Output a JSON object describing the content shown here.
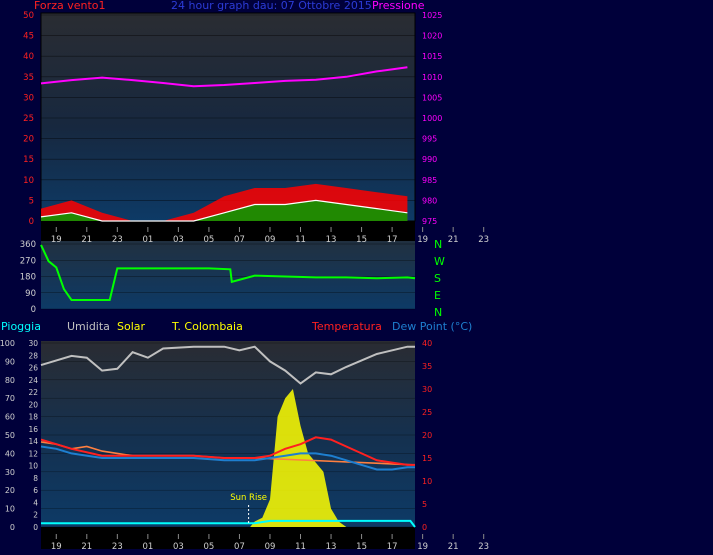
{
  "header": {
    "left_label": "Forza vento1",
    "center_title": "24 hour graph dau: 07 Ottobre 2015",
    "right_label": "Pressione"
  },
  "wind_dir_labels": [
    "N",
    "W",
    "S",
    "E",
    "N"
  ],
  "bottom_legend": {
    "rain": "Pioggia",
    "humidity": "Umidita",
    "solar": "Solar",
    "location": "T. Colombaia",
    "temperature": "Temperatura",
    "dewpoint": "Dew Point (°C)",
    "sunrise": "Sun Rise"
  },
  "colors": {
    "background": "#00003a",
    "wind": "#ff0000",
    "gust": "#ffffff",
    "wind_avg": "#00a000",
    "pressure": "#ff00ff",
    "wind_dir": "#00ff00",
    "humidity": "#c0c0c0",
    "solar": "#ffff00",
    "temperature": "#ff2020",
    "dewpoint": "#1e7fd0",
    "rain": "#00ffff",
    "heat": "#ff8040"
  },
  "chart_data": [
    {
      "type": "line",
      "title": "24 hour graph dau: 07 Ottobre 2015",
      "x_ticks": [
        "19",
        "21",
        "23",
        "01",
        "03",
        "05",
        "07",
        "09",
        "11",
        "13",
        "15",
        "17",
        "19",
        "21",
        "23"
      ],
      "left_axis": {
        "label": "Forza vento1",
        "range": [
          0,
          50
        ],
        "ticks": [
          0,
          5,
          10,
          15,
          20,
          25,
          30,
          35,
          40,
          45,
          50
        ]
      },
      "right_axis": {
        "label": "Pressione",
        "range": [
          975,
          1025
        ],
        "ticks": [
          975,
          980,
          985,
          990,
          995,
          1000,
          1005,
          1010,
          1015,
          1020,
          1025
        ]
      },
      "series": [
        {
          "name": "Pressione",
          "axis": "right",
          "x": [
            18,
            20,
            22,
            24,
            26,
            28,
            30,
            32,
            34,
            36,
            38,
            40,
            42
          ],
          "values": [
            1008.4,
            1009.2,
            1009.8,
            1009.2,
            1008.5,
            1007.7,
            1008.0,
            1008.5,
            1009.0,
            1009.3,
            1010.0,
            1011.3,
            1012.3
          ]
        },
        {
          "name": "Forza vento1",
          "axis": "left",
          "x": [
            18,
            20,
            22,
            24,
            26,
            28,
            30,
            32,
            34,
            36,
            38,
            40,
            42
          ],
          "values": [
            3,
            5,
            2,
            0,
            0,
            2,
            6,
            8,
            8,
            9,
            8,
            7,
            6
          ]
        },
        {
          "axis": "left",
          "x": [
            18,
            20,
            22,
            24,
            26,
            28,
            30,
            32,
            34,
            36,
            38,
            40,
            42
          ],
          "values": [
            1,
            2,
            0,
            0,
            0,
            0,
            2,
            4,
            4,
            5,
            4,
            3,
            2
          ]
        }
      ]
    },
    {
      "type": "line",
      "x_ticks": [
        "19",
        "21",
        "23",
        "01",
        "03",
        "05",
        "07",
        "09",
        "11",
        "13",
        "15",
        "17",
        "19",
        "21",
        "23"
      ],
      "y_axis": {
        "range": [
          0,
          360
        ],
        "ticks": [
          0,
          90,
          180,
          270,
          360
        ]
      },
      "series": [
        {
          "x": [
            18.0,
            18.5,
            19.0,
            19.5,
            20.0,
            20.5,
            22.0,
            22.5,
            23.0,
            25.0,
            27.0,
            29.0,
            30.4,
            30.5,
            32.0,
            34.0,
            36.0,
            38.0,
            40.0,
            42.0,
            42.5
          ],
          "values": [
            355,
            265,
            230,
            110,
            50,
            50,
            50,
            50,
            225,
            225,
            225,
            225,
            220,
            150,
            185,
            180,
            175,
            175,
            170,
            175,
            170
          ]
        }
      ]
    },
    {
      "type": "line",
      "title": "T. Colombaia",
      "x_ticks": [
        "19",
        "21",
        "23",
        "01",
        "03",
        "05",
        "07",
        "09",
        "11",
        "13",
        "15",
        "17",
        "19",
        "21",
        "23"
      ],
      "left_axis_rain": {
        "label": "Pioggia",
        "range": [
          0,
          30
        ],
        "ticks": [
          0,
          2,
          4,
          6,
          8,
          10,
          12,
          14,
          16,
          18,
          20,
          22,
          24,
          26,
          28,
          30
        ]
      },
      "left_axis_humidity": {
        "label": "Umidita",
        "range": [
          0,
          100
        ],
        "ticks": [
          0,
          10,
          20,
          30,
          40,
          50,
          60,
          70,
          80,
          90,
          100
        ]
      },
      "right_axis": {
        "label": "Temperatura / Dew Point (°C)",
        "range": [
          0,
          40
        ],
        "ticks": [
          0,
          5,
          10,
          15,
          20,
          25,
          30,
          35,
          40
        ]
      },
      "annotations": [
        {
          "text": "Sun Rise",
          "x": 31.6
        }
      ],
      "series": [
        {
          "name": "Umidita",
          "axis": "humidity",
          "x": [
            18,
            20,
            21,
            22,
            23,
            24,
            25,
            26,
            28,
            30,
            31,
            32,
            33,
            34,
            35,
            36,
            37,
            38,
            40,
            42,
            42.5
          ],
          "values": [
            88,
            93,
            92,
            85,
            86,
            95,
            92,
            97,
            98,
            98,
            96,
            98,
            90,
            85,
            78,
            84,
            83,
            87,
            94,
            98,
            98
          ]
        },
        {
          "name": "Temperatura",
          "axis": "right",
          "x": [
            18,
            19,
            20,
            22,
            24,
            26,
            28,
            30,
            31,
            32,
            33,
            34,
            35,
            36,
            37,
            38,
            39,
            40,
            41,
            42,
            42.5
          ],
          "values": [
            19,
            18,
            17,
            15.5,
            15.5,
            15.5,
            15.5,
            15,
            15,
            15,
            15.5,
            17,
            18,
            19.5,
            19,
            17.5,
            16,
            14.5,
            14,
            13.5,
            13.5
          ]
        },
        {
          "name": "Dew Point (°C)",
          "axis": "right",
          "x": [
            18,
            19,
            20,
            22,
            24,
            26,
            28,
            30,
            31,
            32,
            33,
            34,
            35,
            36,
            37,
            38,
            39,
            40,
            41,
            42,
            42.5
          ],
          "values": [
            17.5,
            17,
            16,
            15,
            15,
            15,
            15,
            14.5,
            14.5,
            14.5,
            15,
            15.5,
            16,
            16,
            15.5,
            14.5,
            13.5,
            12.5,
            12.5,
            13,
            13
          ]
        },
        {
          "axis": "right",
          "x": [
            18,
            19,
            20,
            21,
            22,
            23,
            24,
            26,
            28,
            30,
            31,
            32,
            42.5
          ],
          "values": [
            18.5,
            18,
            17,
            17.5,
            16.5,
            16,
            15.5,
            15.5,
            15.5,
            15,
            15,
            15,
            13.5
          ]
        },
        {
          "name": "Solar",
          "axis": "humidity",
          "x": [
            18,
            31.7,
            32,
            32.5,
            33,
            33.5,
            34,
            34.5,
            35,
            35.5,
            36,
            36.5,
            37,
            37.5,
            38,
            42.5
          ],
          "values": [
            0,
            0,
            3,
            5,
            15,
            60,
            70,
            75,
            55,
            40,
            35,
            30,
            10,
            3,
            0,
            0
          ]
        },
        {
          "name": "Pioggia",
          "axis": "rain",
          "x": [
            18,
            32,
            33,
            42.2,
            42.5
          ],
          "values": [
            0.6,
            0.6,
            1.0,
            1.0,
            0
          ]
        }
      ]
    }
  ]
}
